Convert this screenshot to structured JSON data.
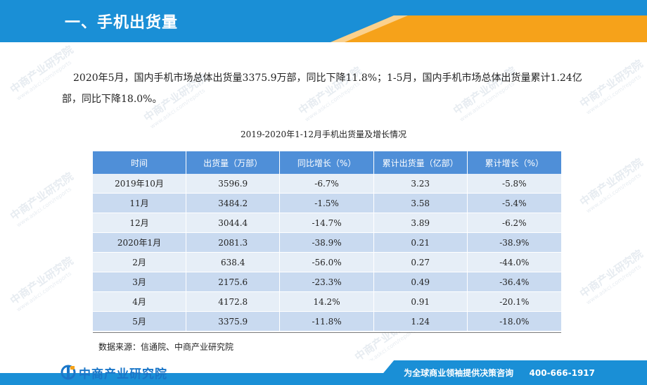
{
  "header": {
    "title": "一、手机出货量"
  },
  "watermark": {
    "brand": "中商产业研究院",
    "url": "www.askci.com/reports"
  },
  "paragraph": "2020年5月，国内手机市场总体出货量3375.9万部，同比下降11.8%；1-5月，国内手机市场总体出货量累计1.24亿部，同比下降18.0%。",
  "table": {
    "title": "2019-2020年1-12月手机出货量及增长情况",
    "columns": [
      "时间",
      "出货量（万部）",
      "同比增长（%）",
      "累计出货量（亿部）",
      "累计增长（%）"
    ],
    "rows": [
      [
        "2019年10月",
        "3596.9",
        "-6.7%",
        "3.23",
        "-5.8%"
      ],
      [
        "11月",
        "3484.2",
        "-1.5%",
        "3.58",
        "-5.4%"
      ],
      [
        "12月",
        "3044.4",
        "-14.7%",
        "3.89",
        "-6.2%"
      ],
      [
        "2020年1月",
        "2081.3",
        "-38.9%",
        "0.21",
        "-38.9%"
      ],
      [
        "2月",
        "638.4",
        "-56.0%",
        "0.27",
        "-44.0%"
      ],
      [
        "3月",
        "2175.6",
        "-23.3%",
        "0.49",
        "-36.4%"
      ],
      [
        "4月",
        "4172.8",
        "14.2%",
        "0.91",
        "-20.1%"
      ],
      [
        "5月",
        "3375.9",
        "-11.8%",
        "1.24",
        "-18.0%"
      ]
    ]
  },
  "source": "数据来源：信通院、中商产业研究院",
  "footer": {
    "logo_text": "中商产业研究院",
    "slogan": "为全球商业领袖提供决策咨询",
    "phone": "400-666-1917"
  },
  "colors": {
    "header_blue": "#1a8fd6",
    "header_orange": "#f6a21a",
    "table_header": "#4f8fd8"
  }
}
